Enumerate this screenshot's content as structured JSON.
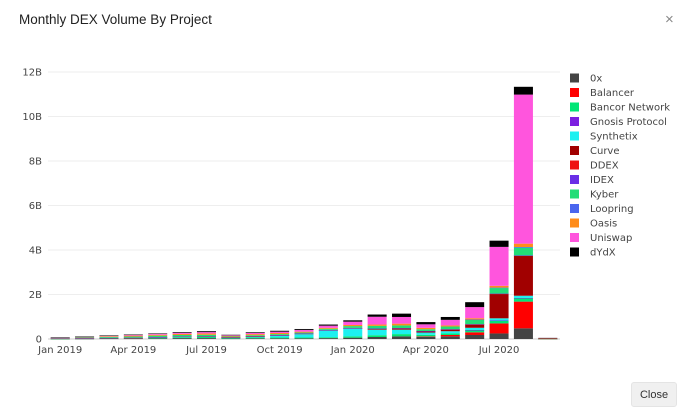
{
  "modal": {
    "title": "Monthly DEX Volume By Project",
    "close_icon": "×",
    "close_button_label": "Close"
  },
  "colors": {
    "0x": "#444444",
    "Balancer": "#ff0000",
    "Bancor Network": "#00e676",
    "Gnosis Protocol": "#7c1fe0",
    "Synthetix": "#1df0f0",
    "Curve": "#a10000",
    "DDEX": "#ee1111",
    "IDEX": "#6a2ee6",
    "Kyber": "#22dd77",
    "Loopring": "#4a66ee",
    "Oasis": "#ff8c1a",
    "Uniswap": "#ff55dd",
    "dYdX": "#000000"
  },
  "chart_data": {
    "type": "bar",
    "stacked": true,
    "title": "Monthly DEX Volume By Project",
    "xlabel": "",
    "ylabel": "",
    "ylim": [
      0,
      12000000000
    ],
    "y_ticks": [
      0,
      2000000000,
      4000000000,
      6000000000,
      8000000000,
      10000000000,
      12000000000
    ],
    "y_tick_labels": [
      "0",
      "2B",
      "4B",
      "6B",
      "8B",
      "10B",
      "12B"
    ],
    "x_tick_labels": [
      {
        "label": "Jan 2019",
        "index": 0
      },
      {
        "label": "Apr 2019",
        "index": 3
      },
      {
        "label": "Jul 2019",
        "index": 6
      },
      {
        "label": "Oct 2019",
        "index": 9
      },
      {
        "label": "Jan 2020",
        "index": 12
      },
      {
        "label": "Apr 2020",
        "index": 15
      },
      {
        "label": "Jul 2020",
        "index": 18
      }
    ],
    "legend_position": "right",
    "categories": [
      "Jan 2019",
      "Feb 2019",
      "Mar 2019",
      "Apr 2019",
      "May 2019",
      "Jun 2019",
      "Jul 2019",
      "Aug 2019",
      "Sep 2019",
      "Oct 2019",
      "Nov 2019",
      "Dec 2019",
      "Jan 2020",
      "Feb 2020",
      "Mar 2020",
      "Apr 2020",
      "May 2020",
      "Jun 2020",
      "Jul 2020",
      "Aug 2020",
      "Sep 2020"
    ],
    "series": [
      {
        "name": "0x",
        "values": [
          5,
          10,
          20,
          20,
          30,
          40,
          40,
          20,
          30,
          30,
          30,
          40,
          60,
          90,
          120,
          100,
          120,
          180,
          250,
          480,
          3
        ]
      },
      {
        "name": "Balancer",
        "values": [
          0,
          0,
          0,
          0,
          0,
          0,
          0,
          0,
          0,
          0,
          0,
          0,
          0,
          0,
          0,
          20,
          60,
          120,
          450,
          1200,
          3
        ]
      },
      {
        "name": "Bancor Network",
        "values": [
          5,
          10,
          15,
          20,
          30,
          40,
          50,
          30,
          40,
          40,
          40,
          40,
          60,
          80,
          100,
          70,
          70,
          100,
          120,
          150,
          2
        ]
      },
      {
        "name": "Gnosis Protocol",
        "values": [
          0,
          0,
          0,
          0,
          0,
          0,
          0,
          0,
          0,
          0,
          0,
          0,
          0,
          0,
          0,
          0,
          0,
          5,
          10,
          15,
          1
        ]
      },
      {
        "name": "Synthetix",
        "values": [
          0,
          0,
          0,
          0,
          10,
          20,
          20,
          10,
          30,
          80,
          150,
          300,
          350,
          250,
          200,
          100,
          100,
          100,
          100,
          100,
          1
        ]
      },
      {
        "name": "Curve",
        "values": [
          0,
          0,
          0,
          0,
          0,
          0,
          0,
          10,
          20,
          20,
          20,
          20,
          20,
          40,
          60,
          60,
          80,
          150,
          1100,
          1800,
          3
        ]
      },
      {
        "name": "DDEX",
        "values": [
          10,
          10,
          10,
          10,
          10,
          10,
          10,
          5,
          5,
          5,
          5,
          5,
          5,
          5,
          5,
          5,
          5,
          5,
          5,
          5,
          0
        ]
      },
      {
        "name": "IDEX",
        "values": [
          10,
          10,
          10,
          10,
          10,
          10,
          10,
          5,
          5,
          5,
          5,
          5,
          5,
          5,
          5,
          5,
          5,
          5,
          5,
          5,
          0
        ]
      },
      {
        "name": "Kyber",
        "values": [
          20,
          30,
          40,
          50,
          60,
          60,
          60,
          30,
          40,
          40,
          40,
          50,
          80,
          120,
          120,
          80,
          120,
          200,
          250,
          350,
          3
        ]
      },
      {
        "name": "Loopring",
        "values": [
          0,
          0,
          0,
          0,
          0,
          0,
          0,
          0,
          0,
          0,
          0,
          0,
          0,
          0,
          0,
          0,
          0,
          10,
          20,
          30,
          0
        ]
      },
      {
        "name": "Oasis",
        "values": [
          10,
          20,
          30,
          40,
          40,
          50,
          60,
          30,
          50,
          50,
          40,
          40,
          50,
          60,
          80,
          60,
          50,
          60,
          80,
          150,
          1
        ]
      },
      {
        "name": "Uniswap",
        "values": [
          5,
          10,
          20,
          30,
          40,
          50,
          60,
          30,
          50,
          60,
          80,
          100,
          150,
          350,
          300,
          160,
          250,
          500,
          1750,
          6700,
          30
        ]
      },
      {
        "name": "dYdX",
        "values": [
          5,
          10,
          15,
          20,
          20,
          30,
          40,
          20,
          30,
          40,
          40,
          50,
          60,
          100,
          150,
          100,
          130,
          220,
          280,
          350,
          3
        ]
      }
    ]
  }
}
